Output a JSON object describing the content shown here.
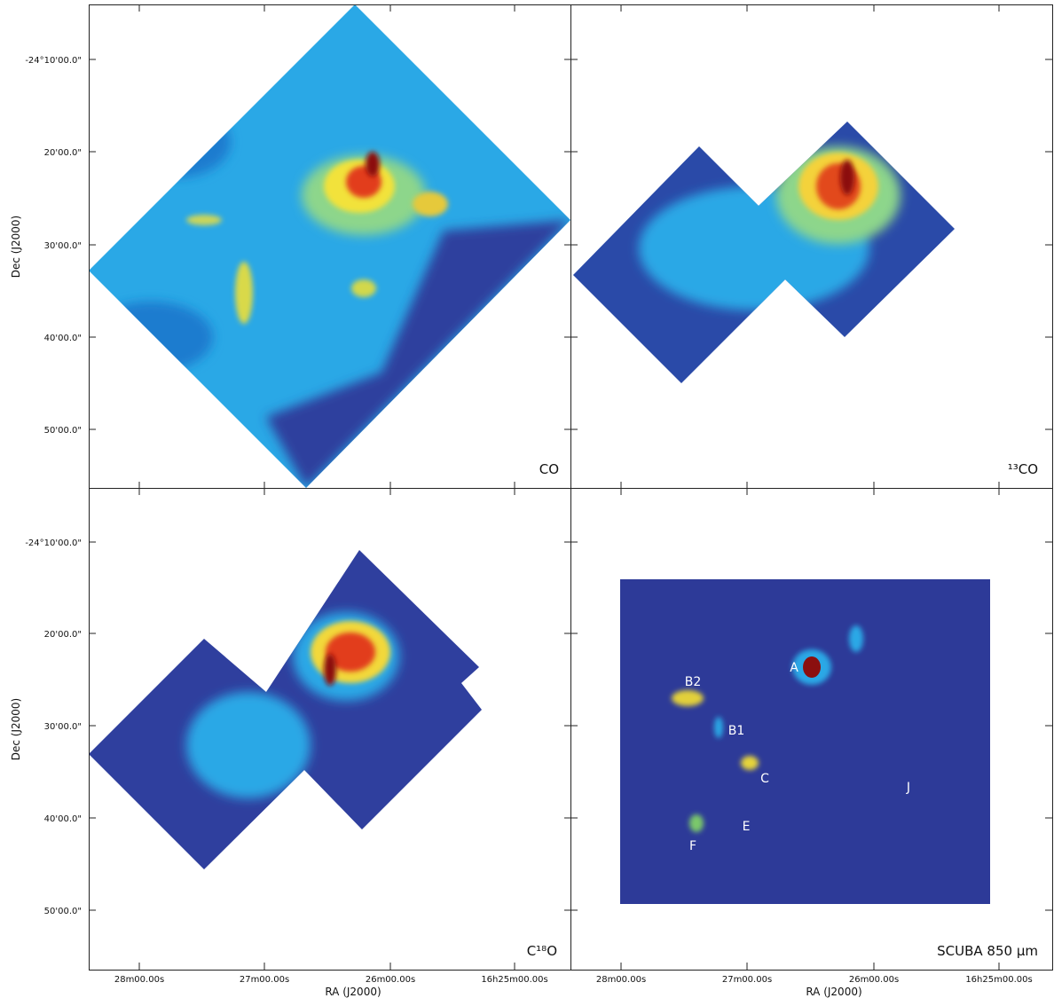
{
  "figure": {
    "x_axis_label": "RA (J2000)",
    "y_axis_label": "Dec (J2000)",
    "dec_ticks": [
      "-24°10'00.0\"",
      "20'00.0\"",
      "30'00.0\"",
      "40'00.0\"",
      "50'00.0\""
    ],
    "ra_ticks": [
      "28m00.00s",
      "27m00.00s",
      "26m00.00s",
      "16h25m00.00s"
    ],
    "panels": [
      {
        "label": "CO"
      },
      {
        "label": "¹³CO"
      },
      {
        "label": "C¹⁸O"
      },
      {
        "label": "SCUBA 850 μm",
        "sources": [
          "A",
          "B2",
          "B1",
          "C",
          "J",
          "E",
          "F"
        ]
      }
    ]
  }
}
